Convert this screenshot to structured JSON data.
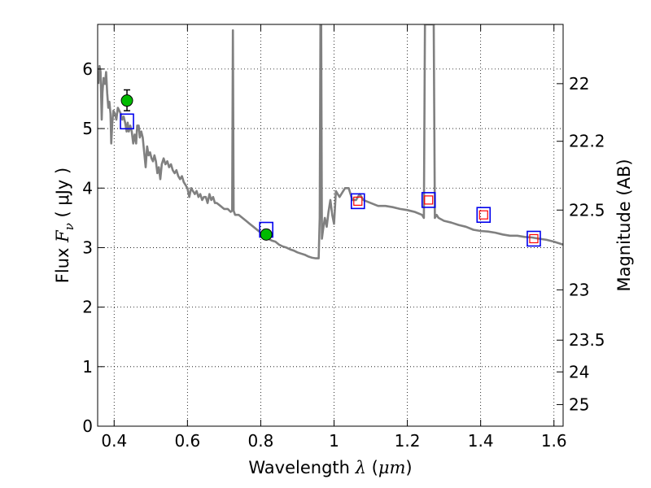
{
  "chart_data": {
    "type": "line",
    "xlabel": {
      "text": "Wavelength",
      "symbol": "λ",
      "unit_open": " (",
      "unit": "μm",
      "unit_close": ")"
    },
    "ylabel": {
      "text": "Flux",
      "symbol": "F",
      "sub": "ν",
      "unit_open": " ( ",
      "unit": "μJy",
      "unit_close": " )"
    },
    "y2label": "Magnitude (AB)",
    "xlim": [
      0.355,
      1.625
    ],
    "ylim": [
      0,
      6.75
    ],
    "grid": true,
    "x_ticks": [
      {
        "value": 0.4,
        "label": "0.4"
      },
      {
        "value": 0.6,
        "label": "0.6"
      },
      {
        "value": 0.8,
        "label": "0.8"
      },
      {
        "value": 1.0,
        "label": "1"
      },
      {
        "value": 1.2,
        "label": "1.2"
      },
      {
        "value": 1.4,
        "label": "1.4"
      },
      {
        "value": 1.6,
        "label": "1.6"
      }
    ],
    "y_ticks": [
      {
        "value": 0,
        "label": "0"
      },
      {
        "value": 1,
        "label": "1"
      },
      {
        "value": 2,
        "label": "2"
      },
      {
        "value": 3,
        "label": "3"
      },
      {
        "value": 4,
        "label": "4"
      },
      {
        "value": 5,
        "label": "5"
      },
      {
        "value": 6,
        "label": "6"
      }
    ],
    "y2_ticks": [
      {
        "value": 22,
        "label": "22"
      },
      {
        "value": 22.2,
        "label": "22.2"
      },
      {
        "value": 22.5,
        "label": "22.5"
      },
      {
        "value": 23,
        "label": "23"
      },
      {
        "value": 23.5,
        "label": "23.5"
      },
      {
        "value": 24,
        "label": "24"
      },
      {
        "value": 25,
        "label": "25"
      }
    ],
    "model_spectrum": {
      "color": "#808080",
      "points": [
        [
          0.357,
          5.75
        ],
        [
          0.36,
          6.05
        ],
        [
          0.363,
          5.95
        ],
        [
          0.366,
          5.15
        ],
        [
          0.368,
          5.6
        ],
        [
          0.371,
          5.85
        ],
        [
          0.375,
          5.75
        ],
        [
          0.378,
          5.95
        ],
        [
          0.381,
          5.6
        ],
        [
          0.384,
          5.35
        ],
        [
          0.387,
          5.45
        ],
        [
          0.39,
          5.25
        ],
        [
          0.392,
          4.75
        ],
        [
          0.395,
          5.1
        ],
        [
          0.398,
          5.3
        ],
        [
          0.402,
          5.25
        ],
        [
          0.406,
          5.15
        ],
        [
          0.41,
          5.35
        ],
        [
          0.414,
          5.3
        ],
        [
          0.418,
          5.25
        ],
        [
          0.422,
          5.15
        ],
        [
          0.426,
          5.2
        ],
        [
          0.43,
          5.1
        ],
        [
          0.434,
          4.95
        ],
        [
          0.437,
          5.1
        ],
        [
          0.44,
          4.95
        ],
        [
          0.444,
          5.05
        ],
        [
          0.448,
          4.95
        ],
        [
          0.452,
          4.75
        ],
        [
          0.456,
          4.9
        ],
        [
          0.46,
          4.75
        ],
        [
          0.463,
          5.05
        ],
        [
          0.467,
          5.05
        ],
        [
          0.47,
          4.85
        ],
        [
          0.474,
          4.95
        ],
        [
          0.478,
          4.85
        ],
        [
          0.482,
          4.6
        ],
        [
          0.486,
          4.35
        ],
        [
          0.49,
          4.7
        ],
        [
          0.494,
          4.55
        ],
        [
          0.498,
          4.6
        ],
        [
          0.502,
          4.5
        ],
        [
          0.506,
          4.45
        ],
        [
          0.51,
          4.55
        ],
        [
          0.514,
          4.45
        ],
        [
          0.518,
          4.25
        ],
        [
          0.522,
          4.35
        ],
        [
          0.526,
          4.15
        ],
        [
          0.53,
          4.4
        ],
        [
          0.535,
          4.5
        ],
        [
          0.54,
          4.4
        ],
        [
          0.545,
          4.45
        ],
        [
          0.55,
          4.35
        ],
        [
          0.555,
          4.4
        ],
        [
          0.56,
          4.3
        ],
        [
          0.565,
          4.25
        ],
        [
          0.57,
          4.3
        ],
        [
          0.575,
          4.2
        ],
        [
          0.58,
          4.15
        ],
        [
          0.585,
          4.2
        ],
        [
          0.59,
          4.1
        ],
        [
          0.595,
          4.05
        ],
        [
          0.6,
          4.0
        ],
        [
          0.605,
          3.85
        ],
        [
          0.61,
          4.0
        ],
        [
          0.615,
          3.95
        ],
        [
          0.62,
          3.9
        ],
        [
          0.625,
          3.95
        ],
        [
          0.63,
          3.85
        ],
        [
          0.635,
          3.9
        ],
        [
          0.64,
          3.8
        ],
        [
          0.645,
          3.85
        ],
        [
          0.65,
          3.85
        ],
        [
          0.655,
          3.75
        ],
        [
          0.66,
          3.9
        ],
        [
          0.665,
          3.8
        ],
        [
          0.67,
          3.85
        ],
        [
          0.675,
          3.75
        ],
        [
          0.68,
          3.75
        ],
        [
          0.69,
          3.7
        ],
        [
          0.7,
          3.65
        ],
        [
          0.71,
          3.65
        ],
        [
          0.718,
          3.6
        ],
        [
          0.722,
          3.62
        ],
        [
          0.724,
          6.65
        ],
        [
          0.726,
          3.62
        ],
        [
          0.73,
          3.55
        ],
        [
          0.74,
          3.55
        ],
        [
          0.75,
          3.5
        ],
        [
          0.76,
          3.45
        ],
        [
          0.77,
          3.4
        ],
        [
          0.78,
          3.35
        ],
        [
          0.79,
          3.3
        ],
        [
          0.8,
          3.25
        ],
        [
          0.81,
          3.2
        ],
        [
          0.82,
          3.15
        ],
        [
          0.83,
          3.12
        ],
        [
          0.84,
          3.1
        ],
        [
          0.85,
          3.05
        ],
        [
          0.86,
          3.02
        ],
        [
          0.87,
          3.0
        ],
        [
          0.88,
          2.97
        ],
        [
          0.89,
          2.95
        ],
        [
          0.9,
          2.92
        ],
        [
          0.91,
          2.9
        ],
        [
          0.92,
          2.88
        ],
        [
          0.93,
          2.85
        ],
        [
          0.94,
          2.83
        ],
        [
          0.95,
          2.82
        ],
        [
          0.958,
          2.82
        ],
        [
          0.961,
          3.5
        ],
        [
          0.963,
          6.75
        ],
        [
          0.965,
          6.75
        ],
        [
          0.967,
          3.15
        ],
        [
          0.97,
          3.3
        ],
        [
          0.975,
          3.5
        ],
        [
          0.98,
          3.35
        ],
        [
          0.985,
          3.6
        ],
        [
          0.99,
          3.8
        ],
        [
          0.995,
          3.55
        ],
        [
          1.0,
          3.4
        ],
        [
          1.005,
          3.95
        ],
        [
          1.01,
          3.9
        ],
        [
          1.015,
          3.85
        ],
        [
          1.02,
          3.9
        ],
        [
          1.03,
          4.0
        ],
        [
          1.04,
          4.0
        ],
        [
          1.05,
          3.8
        ],
        [
          1.06,
          3.8
        ],
        [
          1.07,
          3.9
        ],
        [
          1.08,
          3.8
        ],
        [
          1.1,
          3.75
        ],
        [
          1.12,
          3.7
        ],
        [
          1.14,
          3.7
        ],
        [
          1.16,
          3.68
        ],
        [
          1.18,
          3.65
        ],
        [
          1.2,
          3.63
        ],
        [
          1.22,
          3.6
        ],
        [
          1.24,
          3.55
        ],
        [
          1.245,
          3.5
        ],
        [
          1.248,
          6.75
        ],
        [
          1.272,
          6.75
        ],
        [
          1.275,
          3.5
        ],
        [
          1.28,
          3.55
        ],
        [
          1.285,
          3.5
        ],
        [
          1.3,
          3.45
        ],
        [
          1.32,
          3.42
        ],
        [
          1.34,
          3.38
        ],
        [
          1.36,
          3.35
        ],
        [
          1.38,
          3.3
        ],
        [
          1.4,
          3.28
        ],
        [
          1.42,
          3.27
        ],
        [
          1.44,
          3.25
        ],
        [
          1.46,
          3.22
        ],
        [
          1.48,
          3.2
        ],
        [
          1.5,
          3.2
        ],
        [
          1.52,
          3.18
        ],
        [
          1.54,
          3.17
        ],
        [
          1.56,
          3.15
        ],
        [
          1.58,
          3.13
        ],
        [
          1.6,
          3.1
        ],
        [
          1.625,
          3.05
        ]
      ]
    },
    "observed_points": {
      "color": "#00bb00",
      "points": [
        {
          "x": 0.435,
          "y": 5.47,
          "err_low": 5.3,
          "err_high": 5.65
        },
        {
          "x": 0.815,
          "y": 3.22,
          "err_low": 3.15,
          "err_high": 3.3
        }
      ]
    },
    "model_photometry_boxes": {
      "color": "#0000ee",
      "points": [
        {
          "x": 0.435,
          "y": 5.12
        },
        {
          "x": 0.815,
          "y": 3.3
        },
        {
          "x": 1.065,
          "y": 3.78
        },
        {
          "x": 1.258,
          "y": 3.8
        },
        {
          "x": 1.408,
          "y": 3.55
        },
        {
          "x": 1.545,
          "y": 3.15
        }
      ]
    },
    "model_photometry_inner": {
      "color": "#ff0000",
      "points": [
        {
          "x": 1.065,
          "y": 3.78
        },
        {
          "x": 1.258,
          "y": 3.8
        },
        {
          "x": 1.408,
          "y": 3.55
        },
        {
          "x": 1.545,
          "y": 3.15
        }
      ]
    }
  }
}
